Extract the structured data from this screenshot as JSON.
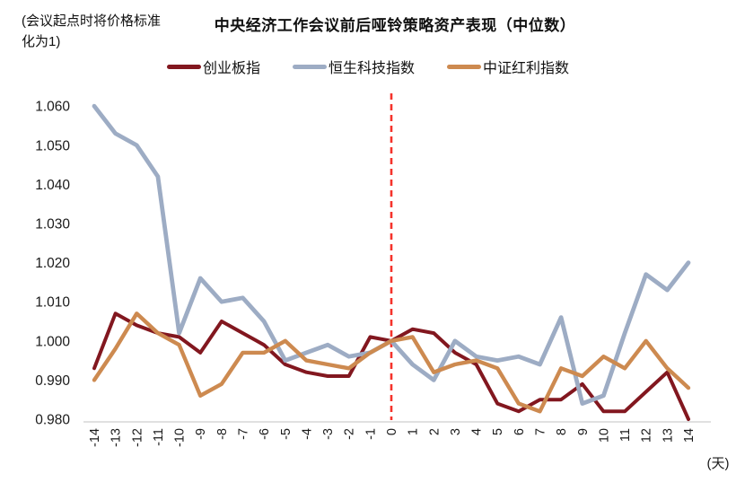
{
  "note": "(会议起点时将价格标准化为1)",
  "title": "中央经济工作会议前后哑铃策略资产表现（中位数）",
  "x_axis_unit": "(天)",
  "colors": {
    "axis_line": "#D6D6D6",
    "tick_text": "#1A1A1A",
    "event_line": "#F5332B"
  },
  "chart_data": {
    "type": "line",
    "title": "中央经济工作会议前后哑铃策略资产表现（中位数）",
    "xlabel": "(天)",
    "ylabel": "",
    "ylim": [
      0.98,
      1.06
    ],
    "y_ticks": [
      0.98,
      0.99,
      1.0,
      1.01,
      1.02,
      1.03,
      1.04,
      1.05,
      1.06
    ],
    "x_ticks": [
      -14,
      -13,
      -12,
      -11,
      -10,
      -9,
      -8,
      -7,
      -6,
      -5,
      -4,
      -3,
      -2,
      -1,
      0,
      1,
      2,
      3,
      4,
      5,
      6,
      7,
      8,
      9,
      10,
      11,
      12,
      13,
      14
    ],
    "x": [
      -14,
      -13,
      -12,
      -11,
      -10,
      -9,
      -8,
      -7,
      -6,
      -5,
      -4,
      -3,
      -2,
      -1,
      0,
      1,
      2,
      3,
      4,
      5,
      6,
      7,
      8,
      9,
      10,
      11,
      12,
      13,
      14
    ],
    "grid": false,
    "legend_position": "top",
    "event_line": {
      "x": 0,
      "style": "dashed",
      "color": "#F5332B"
    },
    "series": [
      {
        "name": "创业板指",
        "color": "#82171F",
        "values": [
          0.993,
          1.007,
          1.004,
          1.002,
          1.001,
          0.997,
          1.005,
          1.002,
          0.999,
          0.994,
          0.992,
          0.991,
          0.991,
          1.001,
          1.0,
          1.003,
          1.002,
          0.997,
          0.994,
          0.984,
          0.982,
          0.985,
          0.985,
          0.989,
          0.982,
          0.982,
          0.987,
          0.992,
          0.98
        ]
      },
      {
        "name": "恒生科技指数",
        "color": "#9DACC4",
        "values": [
          1.06,
          1.053,
          1.05,
          1.042,
          1.002,
          1.016,
          1.01,
          1.011,
          1.005,
          0.995,
          0.997,
          0.999,
          0.996,
          0.997,
          1.0,
          0.994,
          0.99,
          1.0,
          0.996,
          0.995,
          0.996,
          0.994,
          1.006,
          0.984,
          0.986,
          1.002,
          1.017,
          1.013,
          1.02
        ]
      },
      {
        "name": "中证红利指数",
        "color": "#CD8A50",
        "values": [
          0.99,
          0.998,
          1.007,
          1.002,
          0.999,
          0.986,
          0.989,
          0.997,
          0.997,
          1.0,
          0.995,
          0.994,
          0.993,
          0.997,
          1.0,
          1.001,
          0.992,
          0.994,
          0.995,
          0.993,
          0.984,
          0.982,
          0.993,
          0.991,
          0.996,
          0.993,
          1.0,
          0.993,
          0.988
        ]
      }
    ]
  }
}
